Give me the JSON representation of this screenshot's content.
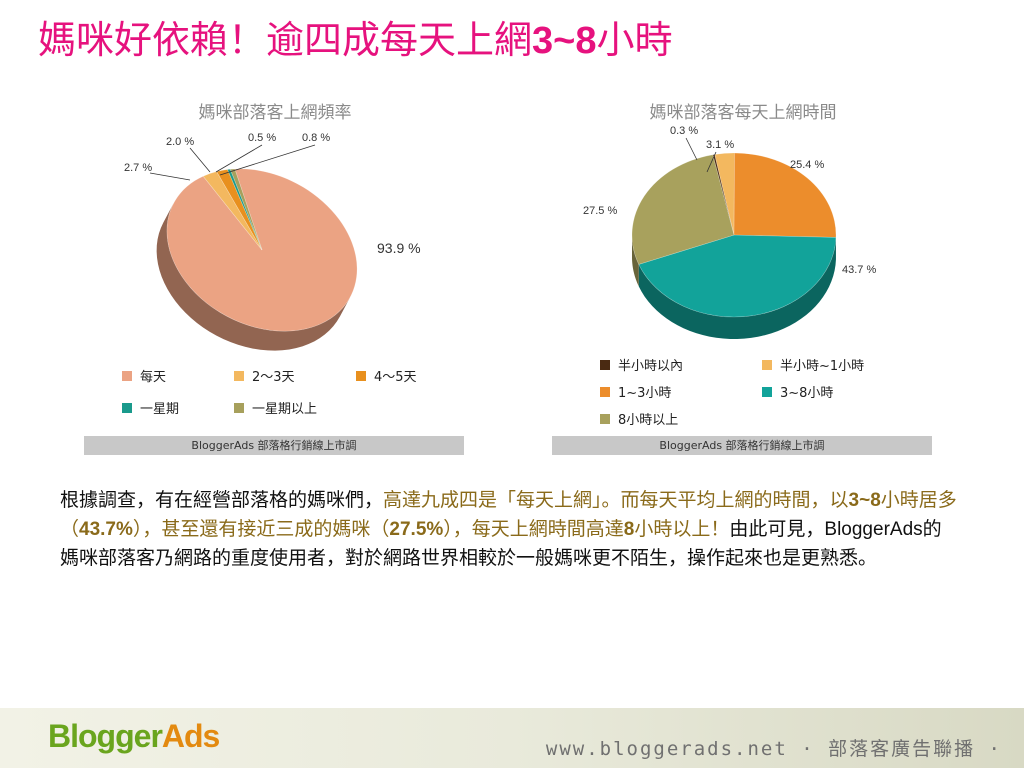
{
  "title": {
    "part1": "媽咪好依賴！逾四成每天上網",
    "bold": "3~8",
    "part2": "小時"
  },
  "chart_data": [
    {
      "type": "pie",
      "title": "媽咪部落客上網頻率",
      "categories": [
        "每天",
        "2～3天",
        "4～5天",
        "一星期",
        "一星期以上"
      ],
      "values": [
        93.9,
        2.7,
        2.0,
        0.5,
        0.8
      ],
      "labels": [
        "93.9 %",
        "2.7 %",
        "2.0 %",
        "0.5 %",
        "0.8 %"
      ],
      "colors": [
        "#eba383",
        "#f3b85f",
        "#e8901e",
        "#1a9a8c",
        "#a7a05c"
      ],
      "source": "BloggerAds  部落格行銷線上市調"
    },
    {
      "type": "pie",
      "title": "媽咪部落客每天上網時間",
      "categories": [
        "半小時以內",
        "半小時~1小時",
        "1~3小時",
        "3~8小時",
        "8小時以上"
      ],
      "values": [
        0.3,
        3.1,
        25.4,
        43.7,
        27.5
      ],
      "labels": [
        "0.3 %",
        "3.1 %",
        "25.4 %",
        "43.7 %",
        "27.5 %"
      ],
      "colors": [
        "#4a2a12",
        "#f3b85f",
        "#ec8d2c",
        "#12a39a",
        "#a8a15d"
      ],
      "source": "BloggerAds  部落格行銷線上市調"
    }
  ],
  "body": {
    "s1": "根據調查，有在經營部落格的媽咪們，",
    "s2": "高達九成四是「每天上網」。而每天平均上網的時間，以",
    "s3": "3~8",
    "s4": "小時居多（",
    "s5": "43.7%",
    "s6": "），甚至還有接近三成的媽咪（",
    "s7": "27.5%",
    "s8": "），每天上網時間高達",
    "s9": "8",
    "s10": "小時以上！",
    "s11": "由此可見，",
    "s12": "BloggerAds",
    "s13": "的媽咪部落客乃網路的重度使用者，對於網路世界相較於一般媽咪更不陌生，操作起來也是更熟悉。"
  },
  "footer": {
    "logo_a": "Blogger",
    "logo_b": "Ads",
    "url": "www.bloggerads.net · 部落客廣告聯播 ·"
  }
}
